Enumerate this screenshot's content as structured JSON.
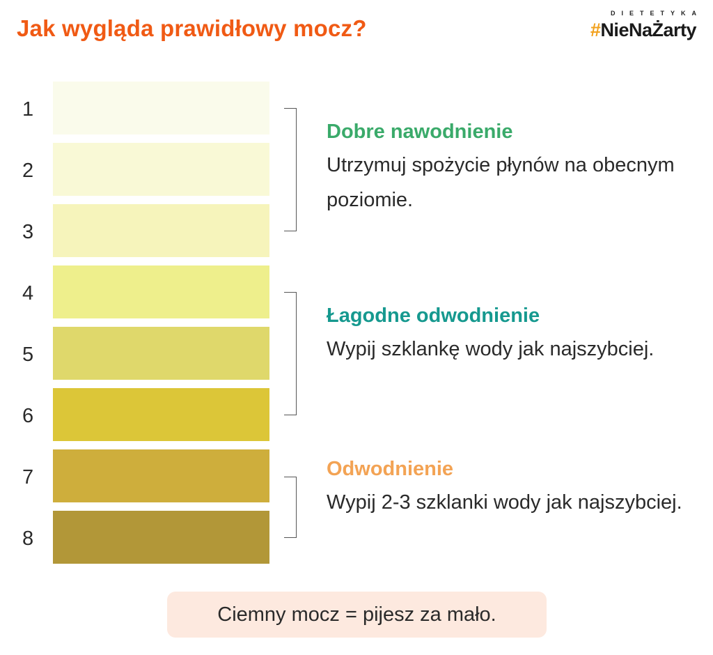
{
  "header": {
    "title": "Jak wygląda prawidłowy mocz?",
    "title_color": "#f05a14",
    "brand_small": "DIETETYKA",
    "brand_hash": "#",
    "brand_name": "NieNaŻarty",
    "brand_hash_color": "#f2a11d"
  },
  "scale": [
    {
      "number": "1",
      "color": "#fafbeb"
    },
    {
      "number": "2",
      "color": "#f9f9d6"
    },
    {
      "number": "3",
      "color": "#f6f4bb"
    },
    {
      "number": "4",
      "color": "#eeef8c"
    },
    {
      "number": "5",
      "color": "#dfd86b"
    },
    {
      "number": "6",
      "color": "#dcc638"
    },
    {
      "number": "7",
      "color": "#ceae3c"
    },
    {
      "number": "8",
      "color": "#b29738"
    }
  ],
  "groups": [
    {
      "heading": "Dobre nawodnienie",
      "heading_color": "#3aaa6a",
      "text": "Utrzymuj spożycie płynów na obecnym poziomie."
    },
    {
      "heading": "Łagodne odwodnienie",
      "heading_color": "#16998f",
      "text": "Wypij szklankę wody jak najszybciej."
    },
    {
      "heading": "Odwodnienie",
      "heading_color": "#f3a354",
      "text": "Wypij 2-3 szklanki wody jak najszybciej."
    }
  ],
  "footer": {
    "note": "Ciemny mocz = pijesz za mało.",
    "note_background": "#fde9df"
  }
}
